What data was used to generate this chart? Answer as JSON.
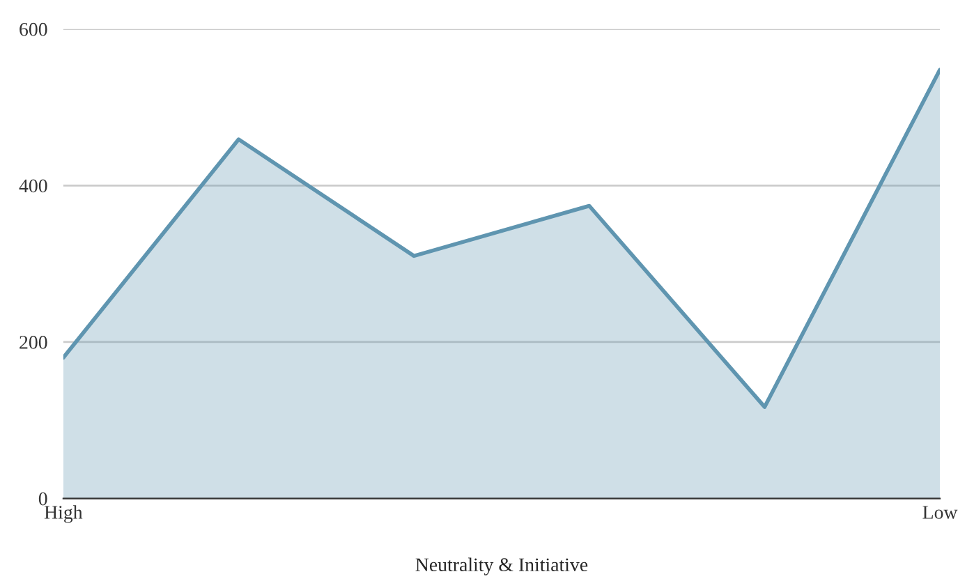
{
  "chart_data": {
    "type": "area",
    "xlabel": "Neutrality & Initiative",
    "categories": [
      "High",
      null,
      null,
      null,
      null,
      "Low"
    ],
    "series": [
      {
        "color": "#5f95b0",
        "values": [
          180,
          459,
          310,
          374,
          117,
          548
        ]
      }
    ],
    "ylim": [
      0,
      600
    ],
    "yticks": [
      0,
      200,
      400,
      600
    ],
    "grid": "y",
    "legend": false
  }
}
